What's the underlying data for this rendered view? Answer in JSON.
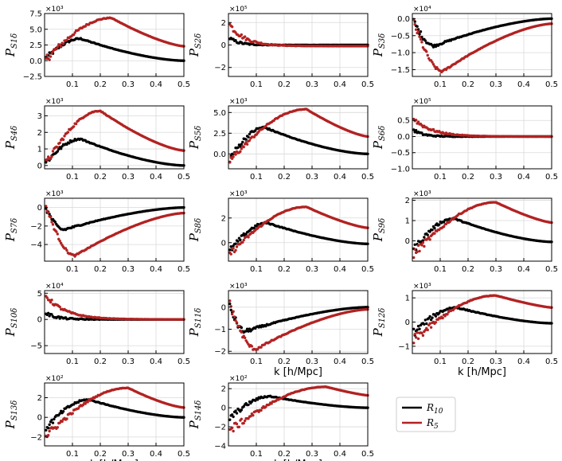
{
  "figure": {
    "legend": [
      {
        "label": "R",
        "sub": "10",
        "color": "#000000"
      },
      {
        "label": "R",
        "sub": "5",
        "color": "#b22222"
      }
    ],
    "xlabel": "k [h/Mpc]"
  },
  "chart_data": [
    {
      "type": "scatter",
      "id": "p1",
      "ylabel_main": "P",
      "ylabel_sub": "S1δ",
      "exponent": "×10³",
      "xlim": [
        0.0,
        0.5
      ],
      "ylim": [
        -2.5,
        7.5
      ],
      "yticks": [
        -2.5,
        0.0,
        2.5,
        5.0,
        7.5
      ],
      "ytick_labels": [
        "−2.5",
        "0.0",
        "2.5",
        "5.0",
        "7.5"
      ],
      "xticks": [
        0.1,
        0.2,
        0.3,
        0.4,
        0.5
      ],
      "xtick_labels": [
        "0.1",
        "0.2",
        "0.3",
        "0.4",
        "0.5"
      ],
      "show_xlabel": false,
      "series": [
        {
          "name": "R10",
          "kind": "bump",
          "peak_x": 0.13,
          "peak_y": 3.5,
          "tail": 0.0,
          "start": 0.2,
          "noise": 0.5
        },
        {
          "name": "R5",
          "kind": "bump",
          "peak_x": 0.24,
          "peak_y": 6.8,
          "tail": 2.3,
          "start": 0.0,
          "noise": 0.8
        }
      ]
    },
    {
      "type": "scatter",
      "id": "p2",
      "ylabel_main": "P",
      "ylabel_sub": "S2δ",
      "exponent": "×10⁵",
      "xlim": [
        0.0,
        0.5
      ],
      "ylim": [
        -2.8,
        2.8
      ],
      "yticks": [
        -2,
        0,
        2
      ],
      "ytick_labels": [
        "−2",
        "0",
        "2"
      ],
      "xticks": [
        0.1,
        0.2,
        0.3,
        0.4,
        0.5
      ],
      "xtick_labels": [
        "0.1",
        "0.2",
        "0.3",
        "0.4",
        "0.5"
      ],
      "show_xlabel": false,
      "series": [
        {
          "name": "R10",
          "kind": "decay",
          "start_y": 0.6,
          "tail": 0.0,
          "rate": 30,
          "noise": 0.15
        },
        {
          "name": "R5",
          "kind": "decay",
          "start_y": 1.8,
          "tail": -0.1,
          "rate": 18,
          "noise": 0.3
        }
      ]
    },
    {
      "type": "scatter",
      "id": "p3",
      "ylabel_main": "P",
      "ylabel_sub": "S3δ",
      "exponent": "×10⁴",
      "xlim": [
        0.0,
        0.5
      ],
      "ylim": [
        -1.7,
        0.15
      ],
      "yticks": [
        -1.5,
        -1.0,
        -0.5,
        0.0
      ],
      "ytick_labels": [
        "−1.5",
        "−1.0",
        "−0.5",
        "0.0"
      ],
      "xticks": [
        0.1,
        0.2,
        0.3,
        0.4,
        0.5
      ],
      "xtick_labels": [
        "0.1",
        "0.2",
        "0.3",
        "0.4",
        "0.5"
      ],
      "show_xlabel": false,
      "series": [
        {
          "name": "R10",
          "kind": "bump",
          "peak_x": 0.08,
          "peak_y": -0.8,
          "tail": 0.0,
          "start": 0.0,
          "noise": 0.1
        },
        {
          "name": "R5",
          "kind": "bump",
          "peak_x": 0.11,
          "peak_y": -1.55,
          "tail": -0.15,
          "start": 0.0,
          "noise": 0.12
        }
      ]
    },
    {
      "type": "scatter",
      "id": "p4",
      "ylabel_main": "P",
      "ylabel_sub": "S4δ",
      "exponent": "×10³",
      "xlim": [
        0.0,
        0.5
      ],
      "ylim": [
        -0.2,
        3.6
      ],
      "yticks": [
        0,
        1,
        2,
        3
      ],
      "ytick_labels": [
        "0",
        "1",
        "2",
        "3"
      ],
      "xticks": [
        0.1,
        0.2,
        0.3,
        0.4,
        0.5
      ],
      "xtick_labels": [
        "0.1",
        "0.2",
        "0.3",
        "0.4",
        "0.5"
      ],
      "show_xlabel": false,
      "series": [
        {
          "name": "R10",
          "kind": "bump",
          "peak_x": 0.13,
          "peak_y": 1.6,
          "tail": 0.0,
          "start": 0.1,
          "noise": 0.2
        },
        {
          "name": "R5",
          "kind": "bump",
          "peak_x": 0.2,
          "peak_y": 3.3,
          "tail": 0.9,
          "start": 0.0,
          "noise": 0.25
        }
      ]
    },
    {
      "type": "scatter",
      "id": "p5",
      "ylabel_main": "P",
      "ylabel_sub": "S5δ",
      "exponent": "×10³",
      "xlim": [
        0.0,
        0.5
      ],
      "ylim": [
        -1.8,
        5.8
      ],
      "yticks": [
        0.0,
        2.5,
        5.0
      ],
      "ytick_labels": [
        "0.0",
        "2.5",
        "5.0"
      ],
      "xticks": [
        0.1,
        0.2,
        0.3,
        0.4,
        0.5
      ],
      "xtick_labels": [
        "0.1",
        "0.2",
        "0.3",
        "0.4",
        "0.5"
      ],
      "show_xlabel": false,
      "series": [
        {
          "name": "R10",
          "kind": "bump",
          "peak_x": 0.13,
          "peak_y": 3.2,
          "tail": 0.0,
          "start": -0.8,
          "noise": 0.5
        },
        {
          "name": "R5",
          "kind": "bump",
          "peak_x": 0.28,
          "peak_y": 5.4,
          "tail": 2.1,
          "start": -1.0,
          "noise": 0.5
        }
      ]
    },
    {
      "type": "scatter",
      "id": "p6",
      "ylabel_main": "P",
      "ylabel_sub": "S6δ",
      "exponent": "×10⁵",
      "xlim": [
        0.0,
        0.5
      ],
      "ylim": [
        -1.0,
        0.95
      ],
      "yticks": [
        -1.0,
        -0.5,
        0.0,
        0.5
      ],
      "ytick_labels": [
        "−1.0",
        "−0.5",
        "0.0",
        "0.5"
      ],
      "xticks": [
        0.1,
        0.2,
        0.3,
        0.4,
        0.5
      ],
      "xtick_labels": [
        "0.1",
        "0.2",
        "0.3",
        "0.4",
        "0.5"
      ],
      "show_xlabel": false,
      "series": [
        {
          "name": "R10",
          "kind": "decay",
          "start_y": 0.2,
          "tail": 0.0,
          "rate": 30,
          "noise": 0.05
        },
        {
          "name": "R5",
          "kind": "decay",
          "start_y": 0.55,
          "tail": 0.0,
          "rate": 15,
          "noise": 0.08
        }
      ]
    },
    {
      "type": "scatter",
      "id": "p7",
      "ylabel_main": "P",
      "ylabel_sub": "S7δ",
      "exponent": "×10³",
      "xlim": [
        0.0,
        0.5
      ],
      "ylim": [
        -5.8,
        1.0
      ],
      "yticks": [
        -4,
        -2,
        0
      ],
      "ytick_labels": [
        "−4",
        "−2",
        "0"
      ],
      "xticks": [
        0.1,
        0.2,
        0.3,
        0.4,
        0.5
      ],
      "xtick_labels": [
        "0.1",
        "0.2",
        "0.3",
        "0.4",
        "0.5"
      ],
      "show_xlabel": false,
      "series": [
        {
          "name": "R10",
          "kind": "bump",
          "peak_x": 0.07,
          "peak_y": -2.4,
          "tail": 0.0,
          "start": 0.2,
          "noise": 0.3
        },
        {
          "name": "R5",
          "kind": "bump",
          "peak_x": 0.11,
          "peak_y": -5.2,
          "tail": -0.6,
          "start": 0.5,
          "noise": 0.3
        }
      ]
    },
    {
      "type": "scatter",
      "id": "p8",
      "ylabel_main": "P",
      "ylabel_sub": "S8δ",
      "exponent": "×10³",
      "xlim": [
        0.0,
        0.5
      ],
      "ylim": [
        -1.5,
        3.6
      ],
      "yticks": [
        0,
        2
      ],
      "ytick_labels": [
        "0",
        "2"
      ],
      "xticks": [
        0.1,
        0.2,
        0.3,
        0.4,
        0.5
      ],
      "xtick_labels": [
        "0.1",
        "0.2",
        "0.3",
        "0.4",
        "0.5"
      ],
      "show_xlabel": false,
      "series": [
        {
          "name": "R10",
          "kind": "bump",
          "peak_x": 0.14,
          "peak_y": 1.6,
          "tail": -0.1,
          "start": -0.8,
          "noise": 0.3
        },
        {
          "name": "R5",
          "kind": "bump",
          "peak_x": 0.28,
          "peak_y": 2.9,
          "tail": 1.2,
          "start": -1.0,
          "noise": 0.3
        }
      ]
    },
    {
      "type": "scatter",
      "id": "p9",
      "ylabel_main": "P",
      "ylabel_sub": "S9δ",
      "exponent": "×10³",
      "xlim": [
        0.0,
        0.5
      ],
      "ylim": [
        -1.0,
        2.1
      ],
      "yticks": [
        0,
        1,
        2
      ],
      "ytick_labels": [
        "0",
        "1",
        "2"
      ],
      "xticks": [
        0.1,
        0.2,
        0.3,
        0.4,
        0.5
      ],
      "xtick_labels": [
        "0.1",
        "0.2",
        "0.3",
        "0.4",
        "0.5"
      ],
      "show_xlabel": false,
      "series": [
        {
          "name": "R10",
          "kind": "bump",
          "peak_x": 0.15,
          "peak_y": 1.1,
          "tail": -0.05,
          "start": -0.5,
          "noise": 0.2
        },
        {
          "name": "R5",
          "kind": "bump",
          "peak_x": 0.3,
          "peak_y": 1.9,
          "tail": 0.9,
          "start": -0.7,
          "noise": 0.25
        }
      ]
    },
    {
      "type": "scatter",
      "id": "p10",
      "ylabel_main": "P",
      "ylabel_sub": "S10δ",
      "exponent": "×10⁴",
      "xlim": [
        0.0,
        0.5
      ],
      "ylim": [
        -6.5,
        5.5
      ],
      "yticks": [
        -5,
        0,
        5
      ],
      "ytick_labels": [
        "−5",
        "0",
        "5"
      ],
      "xticks": [
        0.1,
        0.2,
        0.3,
        0.4,
        0.5
      ],
      "xtick_labels": [
        "0.1",
        "0.2",
        "0.3",
        "0.4",
        "0.5"
      ],
      "show_xlabel": false,
      "series": [
        {
          "name": "R10",
          "kind": "decay",
          "start_y": 1.2,
          "tail": 0.0,
          "rate": 25,
          "noise": 0.4
        },
        {
          "name": "R5",
          "kind": "decay",
          "start_y": 4.5,
          "tail": 0.0,
          "rate": 14,
          "noise": 0.5
        }
      ]
    },
    {
      "type": "scatter",
      "id": "p11",
      "ylabel_main": "P",
      "ylabel_sub": "S11δ",
      "exponent": "×10³",
      "xlim": [
        0.0,
        0.5
      ],
      "ylim": [
        -2.1,
        0.75
      ],
      "yticks": [
        -2,
        -1,
        0
      ],
      "ytick_labels": [
        "−2",
        "−1",
        "0"
      ],
      "xticks": [
        0.1,
        0.2,
        0.3,
        0.4,
        0.5
      ],
      "xtick_labels": [
        "0.1",
        "0.2",
        "0.3",
        "0.4",
        "0.5"
      ],
      "show_xlabel": true,
      "series": [
        {
          "name": "R10",
          "kind": "bump",
          "peak_x": 0.06,
          "peak_y": -1.1,
          "tail": 0.0,
          "start": 0.2,
          "noise": 0.2
        },
        {
          "name": "R5",
          "kind": "bump",
          "peak_x": 0.1,
          "peak_y": -1.9,
          "tail": -0.1,
          "start": 0.3,
          "noise": 0.2
        }
      ]
    },
    {
      "type": "scatter",
      "id": "p12",
      "ylabel_main": "P",
      "ylabel_sub": "S12δ",
      "exponent": "×10³",
      "xlim": [
        0.0,
        0.5
      ],
      "ylim": [
        -1.3,
        1.3
      ],
      "yticks": [
        -1,
        0,
        1
      ],
      "ytick_labels": [
        "−1",
        "0",
        "1"
      ],
      "xticks": [
        0.1,
        0.2,
        0.3,
        0.4,
        0.5
      ],
      "xtick_labels": [
        "0.1",
        "0.2",
        "0.3",
        "0.4",
        "0.5"
      ],
      "show_xlabel": true,
      "series": [
        {
          "name": "R10",
          "kind": "bump",
          "peak_x": 0.16,
          "peak_y": 0.6,
          "tail": -0.05,
          "start": -0.5,
          "noise": 0.2
        },
        {
          "name": "R5",
          "kind": "bump",
          "peak_x": 0.3,
          "peak_y": 1.1,
          "tail": 0.6,
          "start": -0.8,
          "noise": 0.25
        }
      ]
    },
    {
      "type": "scatter",
      "id": "p13",
      "ylabel_main": "P",
      "ylabel_sub": "S13δ",
      "exponent": "×10²",
      "xlim": [
        0.0,
        0.5
      ],
      "ylim": [
        -2.9,
        3.5
      ],
      "yticks": [
        -2,
        0,
        2
      ],
      "ytick_labels": [
        "−2",
        "0",
        "2"
      ],
      "xticks": [
        0.1,
        0.2,
        0.3,
        0.4,
        0.5
      ],
      "xtick_labels": [
        "0.1",
        "0.2",
        "0.3",
        "0.4",
        "0.5"
      ],
      "show_xlabel": true,
      "series": [
        {
          "name": "R10",
          "kind": "bump",
          "peak_x": 0.16,
          "peak_y": 1.8,
          "tail": 0.0,
          "start": -1.2,
          "noise": 0.4
        },
        {
          "name": "R5",
          "kind": "bump",
          "peak_x": 0.3,
          "peak_y": 3.0,
          "tail": 1.0,
          "start": -2.0,
          "noise": 0.5
        }
      ]
    },
    {
      "type": "scatter",
      "id": "p14",
      "ylabel_main": "P",
      "ylabel_sub": "S14δ",
      "exponent": "×10²",
      "xlim": [
        0.0,
        0.5
      ],
      "ylim": [
        -4.0,
        2.6
      ],
      "yticks": [
        -4,
        -2,
        0,
        2
      ],
      "ytick_labels": [
        "−4",
        "−2",
        "0",
        "2"
      ],
      "xticks": [
        0.1,
        0.2,
        0.3,
        0.4,
        0.5
      ],
      "xtick_labels": [
        "0.1",
        "0.2",
        "0.3",
        "0.4",
        "0.5"
      ],
      "show_xlabel": true,
      "series": [
        {
          "name": "R10",
          "kind": "bump",
          "peak_x": 0.15,
          "peak_y": 1.2,
          "tail": 0.0,
          "start": -1.2,
          "noise": 0.4
        },
        {
          "name": "R5",
          "kind": "bump",
          "peak_x": 0.35,
          "peak_y": 2.2,
          "tail": 1.3,
          "start": -2.5,
          "noise": 0.6
        }
      ]
    }
  ]
}
